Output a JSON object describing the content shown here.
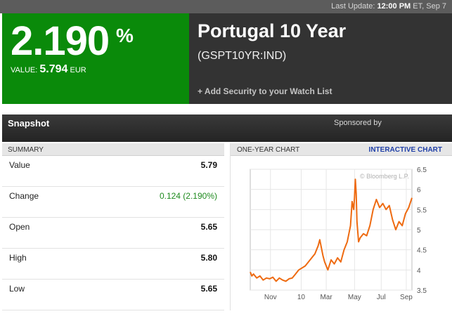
{
  "header": {
    "last_update_label": "Last Update:",
    "last_update_time": "12:00 PM",
    "last_update_tail": "ET, Sep 7"
  },
  "quote": {
    "yield": "2.190",
    "pct_symbol": "%",
    "value_label": "VALUE:",
    "value": "5.794",
    "currency": "EUR"
  },
  "security": {
    "name": "Portugal 10 Year",
    "ticker": "(GSPT10YR:IND)",
    "watch_link": "+ Add Security to your Watch List"
  },
  "snapshot": {
    "title": "Snapshot",
    "sponsor": "Sponsored by"
  },
  "summary": {
    "header": "SUMMARY",
    "rows": [
      {
        "label": "Value",
        "value": "5.79"
      },
      {
        "label": "Change",
        "value": "0.124 (2.190%)"
      },
      {
        "label": "Open",
        "value": "5.65"
      },
      {
        "label": "High",
        "value": "5.80"
      },
      {
        "label": "Low",
        "value": "5.65"
      }
    ]
  },
  "chart_panel": {
    "header": "ONE-YEAR CHART",
    "link": "INTERACTIVE CHART"
  },
  "chart_data": {
    "type": "line",
    "watermark": "© Bloomberg L.P.",
    "ylim": [
      3.5,
      6.5
    ],
    "y_ticks": [
      "6.5",
      "6",
      "5.5",
      "5",
      "4.5",
      "4",
      "3.5"
    ],
    "x_ticks": [
      "Nov",
      "10",
      "Mar",
      "May",
      "Jul",
      "Sep"
    ],
    "x_tick_positions": [
      0.125,
      0.315,
      0.47,
      0.645,
      0.81,
      0.965
    ],
    "line_color": "#ee6a10",
    "x": [
      0,
      0.01,
      0.02,
      0.04,
      0.06,
      0.08,
      0.1,
      0.12,
      0.14,
      0.16,
      0.18,
      0.2,
      0.22,
      0.24,
      0.26,
      0.28,
      0.3,
      0.32,
      0.34,
      0.36,
      0.38,
      0.4,
      0.42,
      0.43,
      0.44,
      0.45,
      0.46,
      0.48,
      0.5,
      0.52,
      0.54,
      0.56,
      0.58,
      0.6,
      0.62,
      0.63,
      0.64,
      0.645,
      0.65,
      0.655,
      0.66,
      0.67,
      0.68,
      0.7,
      0.72,
      0.74,
      0.76,
      0.78,
      0.8,
      0.82,
      0.84,
      0.86,
      0.88,
      0.9,
      0.92,
      0.94,
      0.96,
      0.98,
      1.0
    ],
    "values": [
      3.95,
      3.85,
      3.9,
      3.8,
      3.85,
      3.75,
      3.8,
      3.78,
      3.82,
      3.72,
      3.8,
      3.75,
      3.72,
      3.78,
      3.8,
      3.9,
      4.0,
      4.05,
      4.1,
      4.2,
      4.3,
      4.4,
      4.6,
      4.75,
      4.55,
      4.35,
      4.2,
      4.0,
      4.25,
      4.15,
      4.3,
      4.2,
      4.5,
      4.7,
      5.1,
      5.7,
      5.5,
      5.8,
      6.25,
      5.9,
      5.2,
      4.7,
      4.8,
      4.9,
      4.85,
      5.1,
      5.5,
      5.75,
      5.55,
      5.65,
      5.5,
      5.6,
      5.25,
      5.0,
      5.2,
      5.1,
      5.4,
      5.55,
      5.79
    ]
  }
}
